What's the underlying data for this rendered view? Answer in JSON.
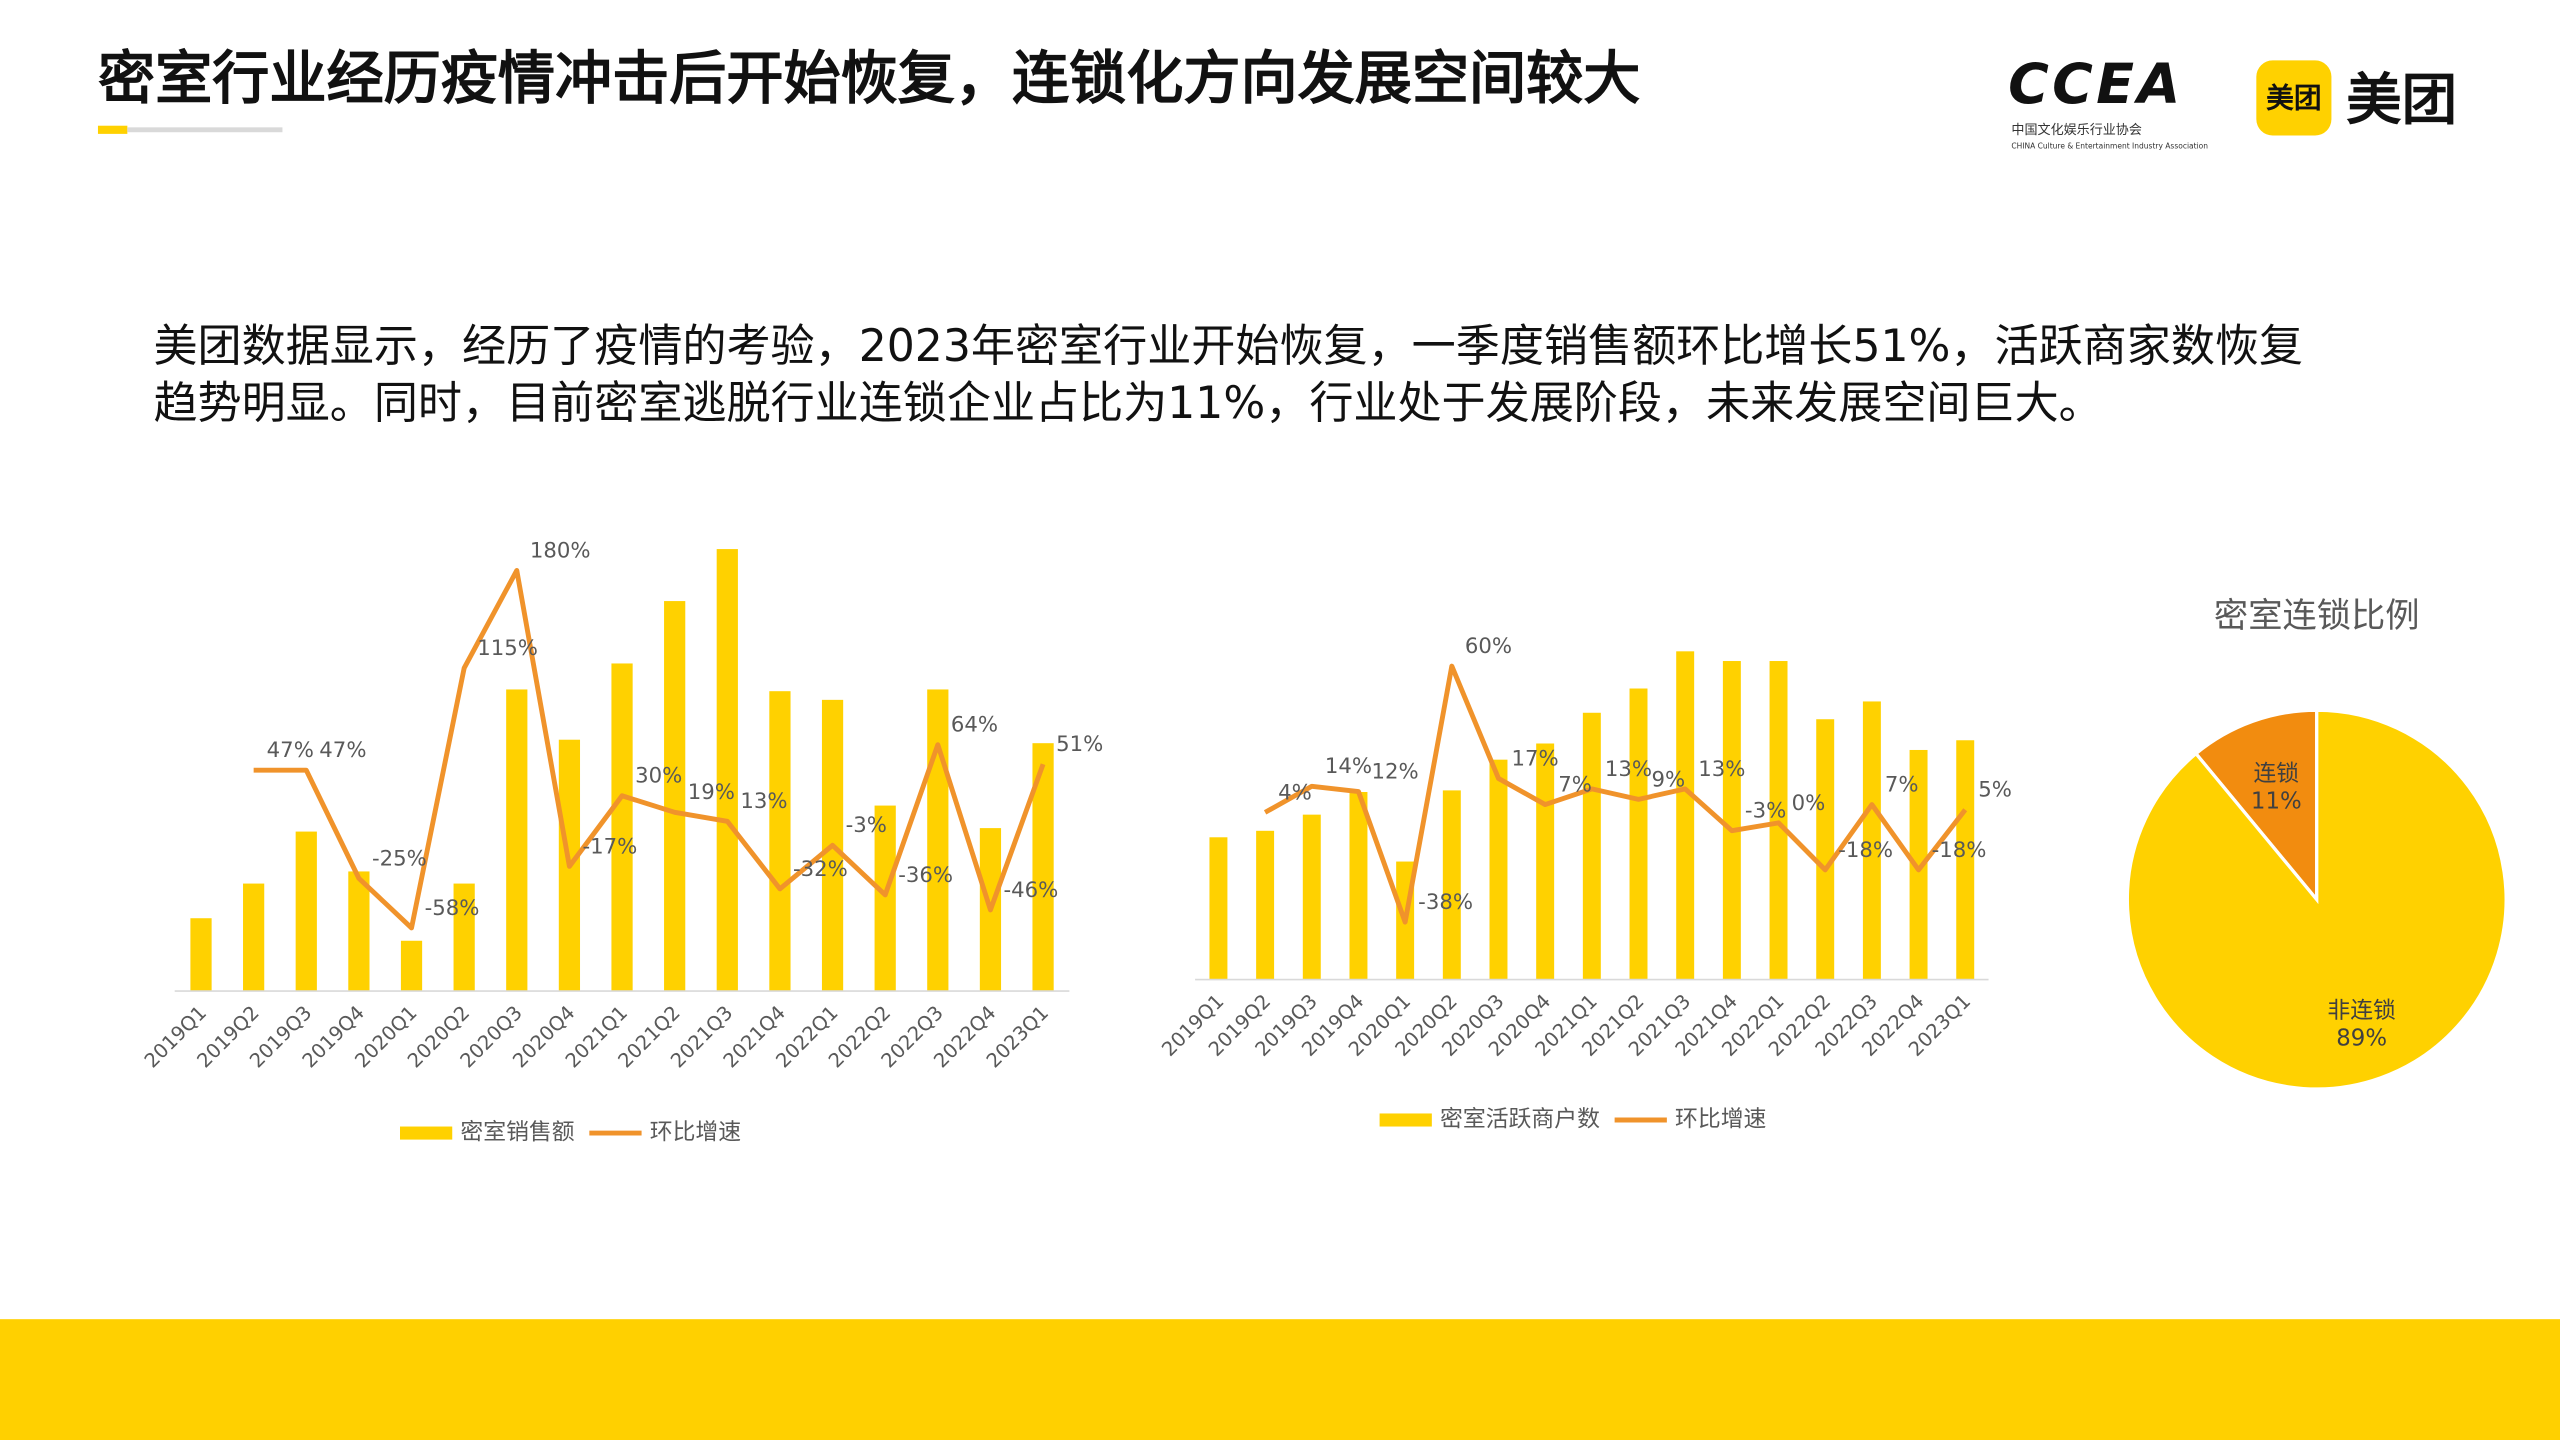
{
  "header": {
    "title": "密室行业经历疫情冲击后开始恢复，连锁化方向发展空间较大",
    "logos": {
      "ccea": "CCEA",
      "ccea_cn": "中国文化娱乐行业协会",
      "ccea_en": "CHINA Culture & Entertainment Industry Association",
      "meituan_badge": "美团",
      "meituan": "美团"
    }
  },
  "body": {
    "lines": [
      "美团数据显示，经历了疫情的考验，2023年密室行业开始恢复，一季度销售额环比增长51%，活跃商家数恢复",
      "趋势明显。同时，目前密室逃脱行业连锁企业占比为11%，行业处于发展阶段，未来发展空间巨大。"
    ]
  },
  "chart_data": [
    {
      "type": "bar",
      "categories": [
        "2019Q1",
        "2019Q2",
        "2019Q3",
        "2019Q4",
        "2020Q1",
        "2020Q2",
        "2020Q3",
        "2020Q4",
        "2021Q1",
        "2021Q2",
        "2021Q3",
        "2021Q4",
        "2022Q1",
        "2022Q2",
        "2022Q3",
        "2022Q4",
        "2023Q1"
      ],
      "series": [
        {
          "name": "密室销售额",
          "color": "#FFD100",
          "values": [
            42,
            62,
            92,
            69,
            29,
            62,
            174,
            145,
            189,
            225,
            255,
            173,
            168,
            107,
            174,
            94,
            143
          ]
        },
        {
          "name": "环比增速",
          "type": "line",
          "axis": "y2",
          "color": "#F0932B",
          "values": [
            null,
            47,
            47,
            -25,
            -58,
            115,
            180,
            -17,
            30,
            19,
            13,
            -32,
            -3,
            -36,
            64,
            -46,
            51
          ],
          "value_labels": [
            null,
            "47%",
            "47%",
            "-25%",
            "-58%",
            "115%",
            "180%",
            "-17%",
            "30%",
            "19%",
            "13%",
            "-32%",
            "-3%",
            "-36%",
            "64%",
            "-46%",
            "51%"
          ]
        }
      ],
      "ylim": [
        0,
        260
      ],
      "y2lim": [
        -100,
        200
      ]
    },
    {
      "type": "bar",
      "categories": [
        "2019Q1",
        "2019Q2",
        "2019Q3",
        "2019Q4",
        "2020Q1",
        "2020Q2",
        "2020Q3",
        "2020Q4",
        "2021Q1",
        "2021Q2",
        "2021Q3",
        "2021Q4",
        "2022Q1",
        "2022Q2",
        "2022Q3",
        "2022Q4",
        "2023Q1"
      ],
      "series": [
        {
          "name": "密室活跃商户数",
          "color": "#FFD100",
          "values": [
            88,
            92,
            102,
            116,
            73,
            117,
            136,
            146,
            165,
            180,
            203,
            197,
            197,
            161,
            172,
            142,
            148
          ]
        },
        {
          "name": "环比增速",
          "type": "line",
          "axis": "y2",
          "color": "#F0932B",
          "values": [
            null,
            4,
            14,
            12,
            -38,
            60,
            17,
            7,
            13,
            9,
            13,
            -3,
            0,
            -18,
            7,
            -18,
            5
          ],
          "value_labels": [
            null,
            "4%",
            "14%",
            "12%",
            "-38%",
            "60%",
            "17%",
            "7%",
            "13%",
            "9%",
            "13%",
            "-3%",
            "0%",
            "-18%",
            "7%",
            "-18%",
            "5%"
          ]
        }
      ],
      "ylim": [
        0,
        210
      ],
      "y2lim": [
        -60,
        70
      ]
    },
    {
      "type": "pie",
      "title": "密室连锁比例",
      "categories": [
        "连锁",
        "非连锁"
      ],
      "values": [
        11,
        89
      ],
      "value_labels": [
        "11%",
        "89%"
      ],
      "colors": [
        "#F28C0F",
        "#FFD100"
      ]
    }
  ]
}
